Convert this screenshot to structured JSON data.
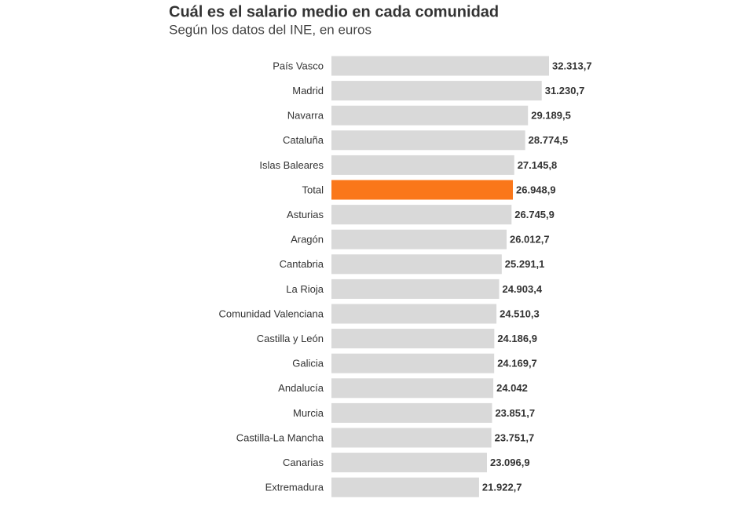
{
  "chart_data": {
    "type": "bar",
    "orientation": "horizontal",
    "title": "Cuál es el salario medio en cada comunidad",
    "subtitle": "Según los datos del INE, en euros",
    "categories": [
      "País Vasco",
      "Madrid",
      "Navarra",
      "Cataluña",
      "Islas Baleares",
      "Total",
      "Asturias",
      "Aragón",
      "Cantabria",
      "La Rioja",
      "Comunidad Valenciana",
      "Castilla y León",
      "Galicia",
      "Andalucía",
      "Murcia",
      "Castilla-La Mancha",
      "Canarias",
      "Extremadura"
    ],
    "values": [
      32313.7,
      31230.7,
      29189.5,
      28774.5,
      27145.8,
      26948.9,
      26745.9,
      26012.7,
      25291.1,
      24903.4,
      24510.3,
      24186.9,
      24169.7,
      24042,
      23851.7,
      23751.7,
      23096.9,
      21922.7
    ],
    "value_labels": [
      "32.313,7",
      "31.230,7",
      "29.189,5",
      "28.774,5",
      "27.145,8",
      "26.948,9",
      "26.745,9",
      "26.012,7",
      "25.291,1",
      "24.903,4",
      "24.510,3",
      "24.186,9",
      "24.169,7",
      "24.042",
      "23.851,7",
      "23.751,7",
      "23.096,9",
      "21.922,7"
    ],
    "colors": [
      "#d9d9d9",
      "#d9d9d9",
      "#d9d9d9",
      "#d9d9d9",
      "#d9d9d9",
      "#fa771a",
      "#d9d9d9",
      "#d9d9d9",
      "#d9d9d9",
      "#d9d9d9",
      "#d9d9d9",
      "#d9d9d9",
      "#d9d9d9",
      "#d9d9d9",
      "#d9d9d9",
      "#d9d9d9",
      "#d9d9d9",
      "#d9d9d9"
    ],
    "xlim": [
      0,
      32500
    ]
  }
}
